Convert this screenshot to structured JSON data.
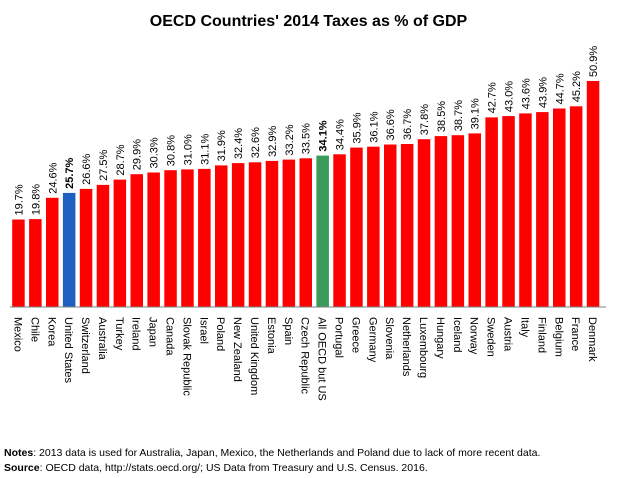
{
  "chart_data": {
    "type": "bar",
    "title": "OECD Countries' 2014 Taxes as % of GDP",
    "categories": [
      "Mexico",
      "Chile",
      "Korea",
      "United States",
      "Switzerland",
      "Australia",
      "Turkey",
      "Ireland",
      "Japan",
      "Canada",
      "Slovak Republic",
      "Israel",
      "Poland",
      "New Zealand",
      "United Kingdom",
      "Estonia",
      "Spain",
      "Czech Republic",
      "All OECD but US",
      "Portugal",
      "Greece",
      "Germany",
      "Slovenia",
      "Netherlands",
      "Luxembourg",
      "Hungary",
      "Iceland",
      "Norway",
      "Sweden",
      "Austria",
      "Italy",
      "Finland",
      "Belgium",
      "France",
      "Denmark"
    ],
    "values": [
      19.7,
      19.8,
      24.6,
      25.7,
      26.6,
      27.5,
      28.7,
      29.9,
      30.3,
      30.8,
      31.0,
      31.1,
      31.9,
      32.4,
      32.6,
      32.9,
      33.2,
      33.5,
      34.1,
      34.4,
      35.9,
      36.1,
      36.6,
      36.7,
      37.8,
      38.5,
      38.7,
      39.1,
      42.7,
      43.0,
      43.6,
      43.9,
      44.7,
      45.2,
      50.9
    ],
    "data_labels": [
      "19.7%",
      "19.8%",
      "24.6%",
      "25.7%",
      "26.6%",
      "27.5%",
      "28.7%",
      "29.9%",
      "30.3%",
      "30.8%",
      "31.0%",
      "31.1%",
      "31.9%",
      "32.4%",
      "32.6%",
      "32.9%",
      "33.2%",
      "33.5%",
      "34.1%",
      "34.4%",
      "35.9%",
      "36.1%",
      "36.6%",
      "36.7%",
      "37.8%",
      "38.5%",
      "38.7%",
      "39.1%",
      "42.7%",
      "43.0%",
      "43.6%",
      "43.9%",
      "44.7%",
      "45.2%",
      "50.9%"
    ],
    "highlighted": {
      "United States": "#1f5fbf",
      "All OECD but US": "#3b9b5b"
    },
    "bar_color": "#ff0000",
    "ylim": [
      0,
      55
    ],
    "grid": false,
    "legend": "none"
  },
  "notes": {
    "label": "Notes",
    "text": ": 2013 data is used for Australia, Japan, Mexico, the Netherlands and Poland due to lack of more recent data."
  },
  "source": {
    "label": "Source",
    "text": ": OECD data, http://stats.oecd.org/; US Data from Treasury and U.S. Census. 2016."
  }
}
